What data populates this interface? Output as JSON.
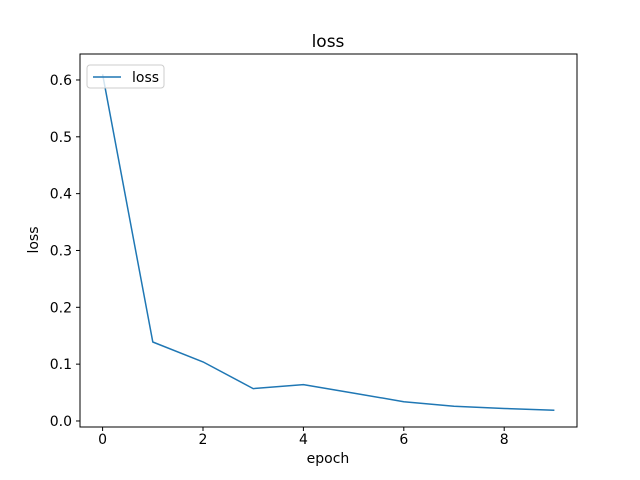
{
  "figure": {
    "background": "#ffffff"
  },
  "chart_data": {
    "type": "line",
    "title": "loss",
    "xlabel": "epoch",
    "ylabel": "loss",
    "x": [
      0,
      1,
      2,
      3,
      4,
      5,
      6,
      7,
      8,
      9
    ],
    "series": [
      {
        "name": "loss",
        "color": "#1f77b4",
        "values": [
          0.61,
          0.139,
          0.104,
          0.057,
          0.064,
          0.049,
          0.034,
          0.026,
          0.022,
          0.019
        ]
      }
    ],
    "xticks": {
      "values": [
        0,
        2,
        4,
        6,
        8
      ],
      "labels": [
        "0",
        "2",
        "4",
        "6",
        "8"
      ]
    },
    "yticks": {
      "values": [
        0.0,
        0.1,
        0.2,
        0.3,
        0.4,
        0.5,
        0.6
      ],
      "labels": [
        "0.0",
        "0.1",
        "0.2",
        "0.3",
        "0.4",
        "0.5",
        "0.6"
      ]
    },
    "xlim": [
      -0.45,
      9.45
    ],
    "ylim": [
      -0.0106,
      0.6457
    ],
    "grid": false,
    "axis_color": "#000000",
    "text_color": "#000000",
    "legend": {
      "position": "upper left",
      "entries": [
        {
          "label": "loss",
          "color": "#1f77b4"
        }
      ],
      "border_color": "#cccccc",
      "background": "#ffffff"
    }
  }
}
